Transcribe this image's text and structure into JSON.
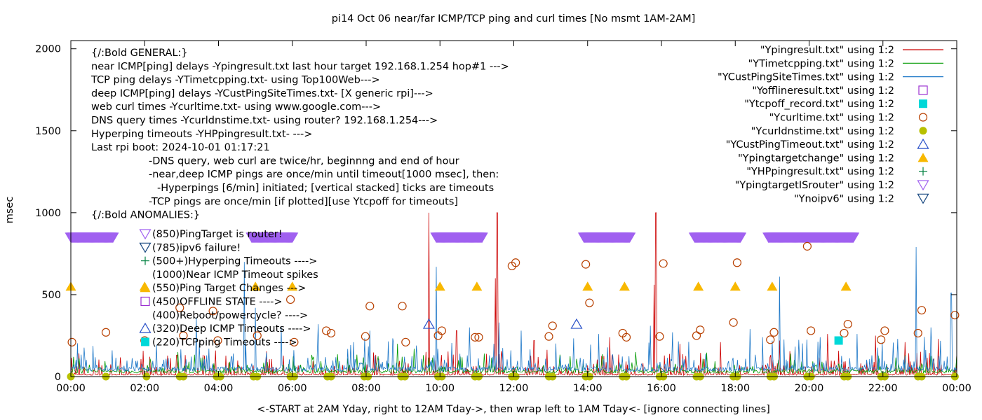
{
  "chart_data": {
    "type": "line",
    "title": "pi14 Oct 06  near/far ICMP/TCP ping and curl times [No msmt 1AM-2AM]",
    "xlabel": "<-START at 2AM Yday, right to 12AM Tday->, then wrap left to 1AM Tday<- [ignore connecting lines]",
    "ylabel": "msec",
    "xlim": [
      0,
      24
    ],
    "ylim": [
      0,
      2050
    ],
    "xticks": [
      0,
      2,
      4,
      6,
      8,
      10,
      12,
      14,
      16,
      18,
      20,
      22,
      24
    ],
    "xtick_labels": [
      "00:00",
      "02:00",
      "04:00",
      "06:00",
      "08:00",
      "10:00",
      "12:00",
      "14:00",
      "16:00",
      "18:00",
      "20:00",
      "22:00",
      "00:00"
    ],
    "yticks": [
      0,
      500,
      1000,
      1500,
      2000
    ],
    "ytick_labels": [
      "0",
      "500",
      "1000",
      "1500",
      "2000"
    ],
    "grid": false,
    "legend_position": "top-right",
    "legend": [
      {
        "label": "\"Ypingresult.txt\" using 1:2",
        "kind": "line",
        "color": "#cc0000"
      },
      {
        "label": "\"YTimetcpping.txt\" using 1:2",
        "kind": "line",
        "color": "#009900"
      },
      {
        "label": "\"YCustPingSiteTimes.txt\" using 1:2",
        "kind": "line",
        "color": "#1e78c8"
      },
      {
        "label": "\"Yofflineresult.txt\" using 1:2",
        "kind": "open-square",
        "color": "#9b30d0"
      },
      {
        "label": "\"Ytcpoff_record.txt\" using 1:2",
        "kind": "filled-square",
        "color": "#00d8d8"
      },
      {
        "label": "\"Ycurltime.txt\" using 1:2",
        "kind": "open-circle",
        "color": "#b84000"
      },
      {
        "label": "\"Ycurldnstime.txt\" using 1:2",
        "kind": "filled-circle",
        "color": "#b8c000"
      },
      {
        "label": "\"YCustPingTimeout.txt\" using 1:2",
        "kind": "open-triangle-up",
        "color": "#2850c8"
      },
      {
        "label": "\"Ypingtargetchange\" using 1:2",
        "kind": "filled-triangle-up",
        "color": "#f8b800"
      },
      {
        "label": "\"YHPpingresult.txt\" using 1:2",
        "kind": "plus",
        "color": "#008040"
      },
      {
        "label": "\"YpingtargetISrouter\" using 1:2",
        "kind": "open-triangle-down",
        "color": "#a060f0"
      },
      {
        "label": "\"Ynoipv6\" using 1:2",
        "kind": "open-triangle-down",
        "color": "#184880"
      }
    ],
    "annotations": [
      {
        "text": "{/:Bold GENERAL:}",
        "indent": 0
      },
      {
        "text": "near ICMP[ping] delays -Ypingresult.txt last hour target 192.168.1.254 hop#1 --->",
        "indent": 0
      },
      {
        "text": "TCP ping delays -YTimetcpping.txt- using Top100Web--->",
        "indent": 0
      },
      {
        "text": "deep ICMP[ping] delays -YCustPingSiteTimes.txt- [X generic rpi]--->",
        "indent": 0
      },
      {
        "text": "web curl times -Ycurltime.txt- using www.google.com--->",
        "indent": 0
      },
      {
        "text": "DNS query times -Ycurldnstime.txt- using router? 192.168.1.254--->",
        "indent": 0
      },
      {
        "text": "Hyperping timeouts -YHPpingresult.txt- --->",
        "indent": 0
      },
      {
        "text": "Last rpi boot: 2024-10-01 01:17:21",
        "indent": 0
      },
      {
        "text": "-DNS query, web curl are twice/hr, beginnng and end of hour",
        "indent": 1
      },
      {
        "text": "-near,deep ICMP pings are once/min until timeout[1000 msec], then:",
        "indent": 1
      },
      {
        "text": "-Hyperpings [6/min] initiated; [vertical stacked] ticks are timeouts",
        "indent": 2
      },
      {
        "text": "-TCP pings are once/min [if plotted][use Ytcpoff for timeouts]",
        "indent": 1
      },
      {
        "text": "{/:Bold ANOMALIES:}",
        "indent": 0
      }
    ],
    "anomaly_key": [
      {
        "text": "(850)PingTarget is router!",
        "kind": "open-triangle-down",
        "color": "#a060f0"
      },
      {
        "text": "(785)ipv6 failure!",
        "kind": "open-triangle-down",
        "color": "#184880"
      },
      {
        "text": "(500+)Hyperping Timeouts ---->",
        "kind": "plus",
        "color": "#008040"
      },
      {
        "text": "(1000)Near ICMP Timeout spikes",
        "kind": "none",
        "color": ""
      },
      {
        "text": "(550)Ping Target Changes --->",
        "kind": "filled-triangle-up",
        "color": "#f8b800"
      },
      {
        "text": "(450)OFFLINE STATE ---->",
        "kind": "open-square",
        "color": "#9b30d0"
      },
      {
        "text": "(400)Reboot/powercycle? ---->",
        "kind": "none",
        "color": ""
      },
      {
        "text": "(320)Deep ICMP Timeouts ---->",
        "kind": "open-triangle-up",
        "color": "#2850c8"
      },
      {
        "text": "(220)TCPping Timeouts ---->",
        "kind": "filled-square",
        "color": "#00d8d8"
      }
    ],
    "series": [
      {
        "name": "\"YpingtargetISrouter\" using 1:2",
        "kind": "open-triangle-down",
        "color": "#a060f0",
        "ranges": [
          [
            0.0,
            1.15
          ],
          [
            4.9,
            6.0
          ],
          [
            9.9,
            11.15
          ],
          [
            13.9,
            15.15
          ],
          [
            16.9,
            18.15
          ],
          [
            18.9,
            21.2
          ]
        ],
        "y": 850
      },
      {
        "name": "\"Ypingtargetchange\" using 1:2",
        "kind": "filled-triangle-up",
        "color": "#f8b800",
        "x": [
          0.0,
          2.0,
          5.0,
          6.0,
          10.0,
          11.0,
          14.0,
          15.0,
          17.0,
          18.0,
          19.0,
          21.0
        ],
        "y": 550
      },
      {
        "name": "\"Ycurltime.txt\" using 1:2",
        "kind": "open-circle",
        "color": "#b84000",
        "points": [
          [
            0.03,
            210
          ],
          [
            0.95,
            270
          ],
          [
            2.0,
            220
          ],
          [
            2.95,
            420
          ],
          [
            3.05,
            250
          ],
          [
            3.85,
            400
          ],
          [
            3.98,
            220
          ],
          [
            5.05,
            250
          ],
          [
            5.95,
            470
          ],
          [
            6.05,
            210
          ],
          [
            6.92,
            280
          ],
          [
            7.05,
            265
          ],
          [
            7.98,
            245
          ],
          [
            8.1,
            430
          ],
          [
            8.98,
            430
          ],
          [
            9.07,
            210
          ],
          [
            9.95,
            250
          ],
          [
            10.05,
            280
          ],
          [
            10.95,
            240
          ],
          [
            11.05,
            240
          ],
          [
            11.95,
            675
          ],
          [
            12.05,
            695
          ],
          [
            12.95,
            245
          ],
          [
            13.05,
            310
          ],
          [
            13.95,
            685
          ],
          [
            14.05,
            450
          ],
          [
            14.95,
            265
          ],
          [
            15.05,
            240
          ],
          [
            15.95,
            245
          ],
          [
            16.05,
            690
          ],
          [
            16.95,
            250
          ],
          [
            17.05,
            285
          ],
          [
            17.95,
            330
          ],
          [
            18.05,
            695
          ],
          [
            18.95,
            225
          ],
          [
            19.05,
            270
          ],
          [
            19.95,
            795
          ],
          [
            20.05,
            280
          ],
          [
            20.95,
            265
          ],
          [
            21.05,
            320
          ],
          [
            21.95,
            225
          ],
          [
            22.05,
            280
          ],
          [
            22.95,
            265
          ],
          [
            23.05,
            405
          ],
          [
            23.95,
            375
          ]
        ]
      },
      {
        "name": "\"Ycurldnstime.txt\" using 1:2",
        "kind": "filled-circle",
        "color": "#b8c000",
        "x": [
          0.0,
          0.95,
          2.05,
          2.95,
          3.05,
          3.95,
          4.05,
          4.95,
          5.05,
          5.95,
          6.05,
          6.95,
          7.05,
          7.95,
          8.05,
          8.95,
          9.05,
          9.95,
          10.05,
          10.95,
          11.05,
          11.95,
          12.05,
          12.95,
          13.05,
          13.95,
          14.05,
          14.95,
          15.05,
          15.95,
          16.05,
          16.95,
          17.05,
          17.95,
          18.05,
          18.95,
          19.05,
          19.95,
          20.05,
          20.95,
          21.05,
          21.95,
          22.05,
          22.95,
          23.05,
          23.95
        ],
        "y": 0
      },
      {
        "name": "\"YCustPingTimeout.txt\" using 1:2",
        "kind": "open-triangle-up",
        "color": "#2850c8",
        "points": [
          [
            9.7,
            320
          ],
          [
            13.7,
            320
          ]
        ]
      },
      {
        "name": "\"Ytcpoff_record.txt\" using 1:2",
        "kind": "filled-square",
        "color": "#00d8d8",
        "points": [
          [
            20.8,
            220
          ]
        ]
      },
      {
        "name": "\"Ypingresult.txt\" using 1:2",
        "kind": "line",
        "color": "#cc0000",
        "baseline": 12,
        "spikes": [
          [
            9.7,
            1000
          ],
          [
            11.55,
            1000
          ],
          [
            15.85,
            1000
          ],
          [
            11.5,
            600
          ],
          [
            15.8,
            560
          ],
          [
            10.45,
            280
          ],
          [
            12.55,
            220
          ],
          [
            14.6,
            240
          ],
          [
            16.5,
            200
          ],
          [
            17.6,
            210
          ],
          [
            19.2,
            220
          ],
          [
            20.5,
            260
          ],
          [
            21.8,
            250
          ],
          [
            22.6,
            210
          ],
          [
            23.5,
            230
          ]
        ]
      },
      {
        "name": "\"YTimetcpping.txt\" using 1:2",
        "kind": "line",
        "color": "#009900",
        "baseline": 30,
        "spikes": [
          [
            8.85,
            200
          ],
          [
            9.3,
            170
          ],
          [
            2.9,
            150
          ],
          [
            11.2,
            140
          ],
          [
            15.3,
            150
          ],
          [
            19.5,
            140
          ],
          [
            22.6,
            130
          ]
        ]
      },
      {
        "name": "\"YCustPingSiteTimes.txt\" using 1:2",
        "kind": "line",
        "color": "#1e78c8",
        "baseline": 45,
        "spikes": [
          [
            4.7,
            700
          ],
          [
            9.9,
            670
          ],
          [
            5.0,
            420
          ],
          [
            3.4,
            360
          ],
          [
            5.7,
            300
          ],
          [
            6.7,
            320
          ],
          [
            8.1,
            280
          ],
          [
            10.8,
            300
          ],
          [
            11.6,
            330
          ],
          [
            12.2,
            280
          ],
          [
            14.3,
            260
          ],
          [
            15.7,
            310
          ],
          [
            16.3,
            270
          ],
          [
            18.4,
            290
          ],
          [
            19.2,
            610
          ],
          [
            20.3,
            240
          ],
          [
            21.3,
            260
          ],
          [
            22.4,
            230
          ],
          [
            22.9,
            790
          ],
          [
            23.3,
            300
          ],
          [
            23.85,
            510
          ]
        ]
      }
    ]
  }
}
